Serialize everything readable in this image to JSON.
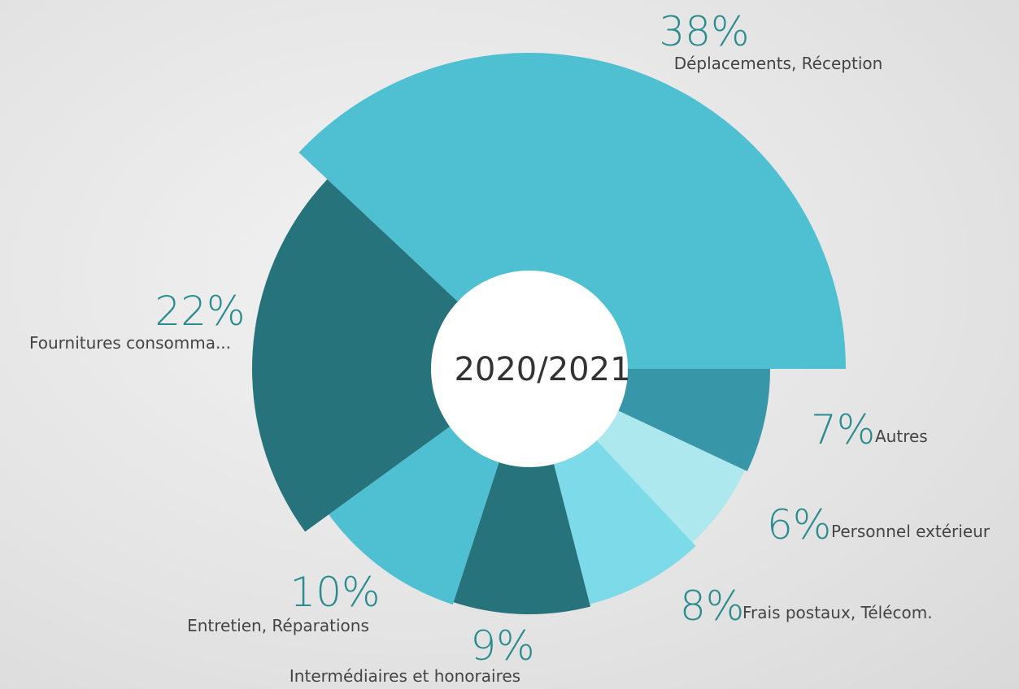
{
  "chart_data": {
    "type": "pie",
    "center_label": "2020/2021",
    "categories": [
      "Déplacements, Réception",
      "Fournitures consomma...",
      "Entretien, Réparations",
      "Intermédiaires et honoraires",
      "Frais postaux, Télécom.",
      "Personnel extérieur",
      "Autres"
    ],
    "values": [
      38,
      22,
      10,
      9,
      8,
      6,
      7
    ],
    "value_labels": [
      "38%",
      "22%",
      "10%",
      "9%",
      "8%",
      "6%",
      "7%"
    ],
    "colors": [
      "#4fbfd2",
      "#26737c",
      "#4fbfd2",
      "#26737c",
      "#7ddbe9",
      "#aee8ef",
      "#3797a8"
    ]
  }
}
